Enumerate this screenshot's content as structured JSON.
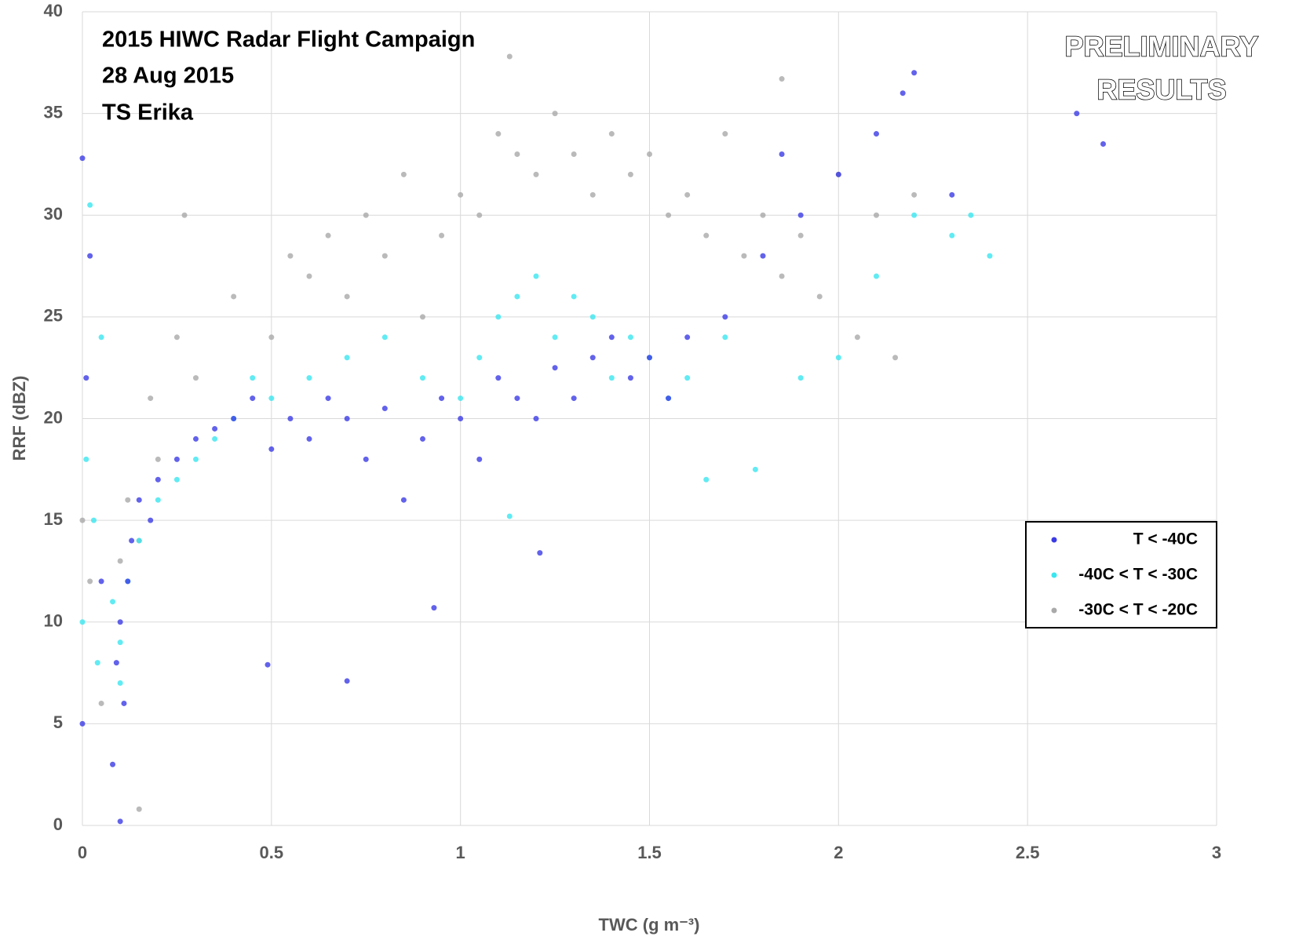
{
  "chart_data": {
    "type": "scatter",
    "title": [
      "2015 HIWC Radar Flight Campaign",
      "28 Aug 2015",
      "TS Erika"
    ],
    "annotation": [
      "PRELIMINARY",
      "RESULTS"
    ],
    "x_label": "TWC (g m⁻³)",
    "y_label": "RRF (dBZ)",
    "xlim": [
      0,
      3
    ],
    "ylim": [
      0,
      40
    ],
    "xticks": [
      0,
      0.5,
      1,
      1.5,
      2,
      2.5,
      3
    ],
    "yticks": [
      0,
      5,
      10,
      15,
      20,
      25,
      30,
      35,
      40
    ],
    "grid": true,
    "legend": "right",
    "series": [
      {
        "name": "T < -40C",
        "color": "#3b3be6",
        "x": [
          0,
          0,
          0.01,
          0.02,
          0.05,
          0.08,
          0.09,
          0.1,
          0.1,
          0.11,
          0.12,
          0.13,
          0.15,
          0.18,
          0.2,
          0.25,
          0.3,
          0.35,
          0.4,
          0.45,
          0.5,
          0.55,
          0.6,
          0.65,
          0.7,
          0.75,
          0.8,
          0.85,
          0.9,
          0.95,
          1.0,
          1.05,
          1.1,
          1.15,
          1.2,
          1.25,
          1.3,
          1.35,
          1.4,
          1.45,
          1.5,
          1.55,
          1.6,
          1.7,
          1.8,
          1.9,
          2.0,
          2.1,
          2.2,
          2.3,
          2.63,
          2.7,
          0.7,
          0.93,
          1.21,
          0.49,
          1.85,
          2.17
        ],
        "values": [
          32.8,
          5,
          22,
          28,
          12,
          3,
          8,
          10,
          0.2,
          6,
          12,
          14,
          16,
          15,
          17,
          18,
          19,
          19.5,
          20,
          21,
          18.5,
          20,
          19,
          21,
          20,
          18,
          20.5,
          16,
          19,
          21,
          20,
          18,
          22,
          21,
          20,
          22.5,
          21,
          23,
          24,
          22,
          23,
          21,
          24,
          25,
          28,
          30,
          32,
          34,
          37,
          31,
          35,
          33.5,
          7.1,
          10.7,
          13.4,
          7.9,
          33,
          36
        ]
      },
      {
        "name": "-40C < T < -30C",
        "color": "#3ae6f0",
        "x": [
          0,
          0.01,
          0.02,
          0.03,
          0.04,
          0.05,
          0.08,
          0.1,
          0.1,
          0.12,
          0.15,
          0.2,
          0.25,
          0.3,
          0.35,
          0.4,
          0.45,
          0.5,
          0.6,
          0.7,
          0.8,
          0.9,
          1.0,
          1.05,
          1.1,
          1.15,
          1.2,
          1.25,
          1.3,
          1.35,
          1.4,
          1.45,
          1.5,
          1.55,
          1.6,
          1.65,
          1.7,
          1.78,
          1.9,
          2.0,
          2.1,
          2.2,
          2.3,
          2.35,
          2.4,
          1.13
        ],
        "values": [
          10,
          18,
          30.5,
          15,
          8,
          24,
          11,
          9,
          7,
          12,
          14,
          16,
          17,
          18,
          19,
          20,
          22,
          21,
          22,
          23,
          24,
          22,
          21,
          23,
          25,
          26,
          27,
          24,
          26,
          25,
          22,
          24,
          23,
          21,
          22,
          17,
          24,
          17.5,
          22,
          23,
          27,
          30,
          29,
          30,
          28,
          15.2
        ]
      },
      {
        "name": "-30C < T < -20C",
        "color": "#a9a9a9",
        "x": [
          0,
          0.02,
          0.05,
          0.1,
          0.12,
          0.15,
          0.18,
          0.2,
          0.25,
          0.27,
          0.3,
          0.4,
          0.5,
          0.55,
          0.6,
          0.65,
          0.7,
          0.75,
          0.8,
          0.85,
          0.9,
          0.95,
          1.0,
          1.05,
          1.1,
          1.15,
          1.2,
          1.25,
          1.3,
          1.35,
          1.4,
          1.45,
          1.5,
          1.55,
          1.6,
          1.65,
          1.7,
          1.75,
          1.8,
          1.85,
          1.9,
          1.95,
          2.0,
          2.05,
          2.1,
          2.15,
          2.2,
          0.15,
          1.13,
          1.85
        ],
        "values": [
          15,
          12,
          6,
          13,
          16,
          14,
          21,
          18,
          24,
          30,
          22,
          26,
          24,
          28,
          27,
          29,
          26,
          30,
          28,
          32,
          25,
          29,
          31,
          30,
          34,
          33,
          32,
          35,
          33,
          31,
          34,
          32,
          33,
          30,
          31,
          29,
          34,
          28,
          30,
          27,
          29,
          26,
          32,
          24,
          30,
          23,
          31,
          0.8,
          37.8,
          36.7
        ]
      }
    ]
  }
}
